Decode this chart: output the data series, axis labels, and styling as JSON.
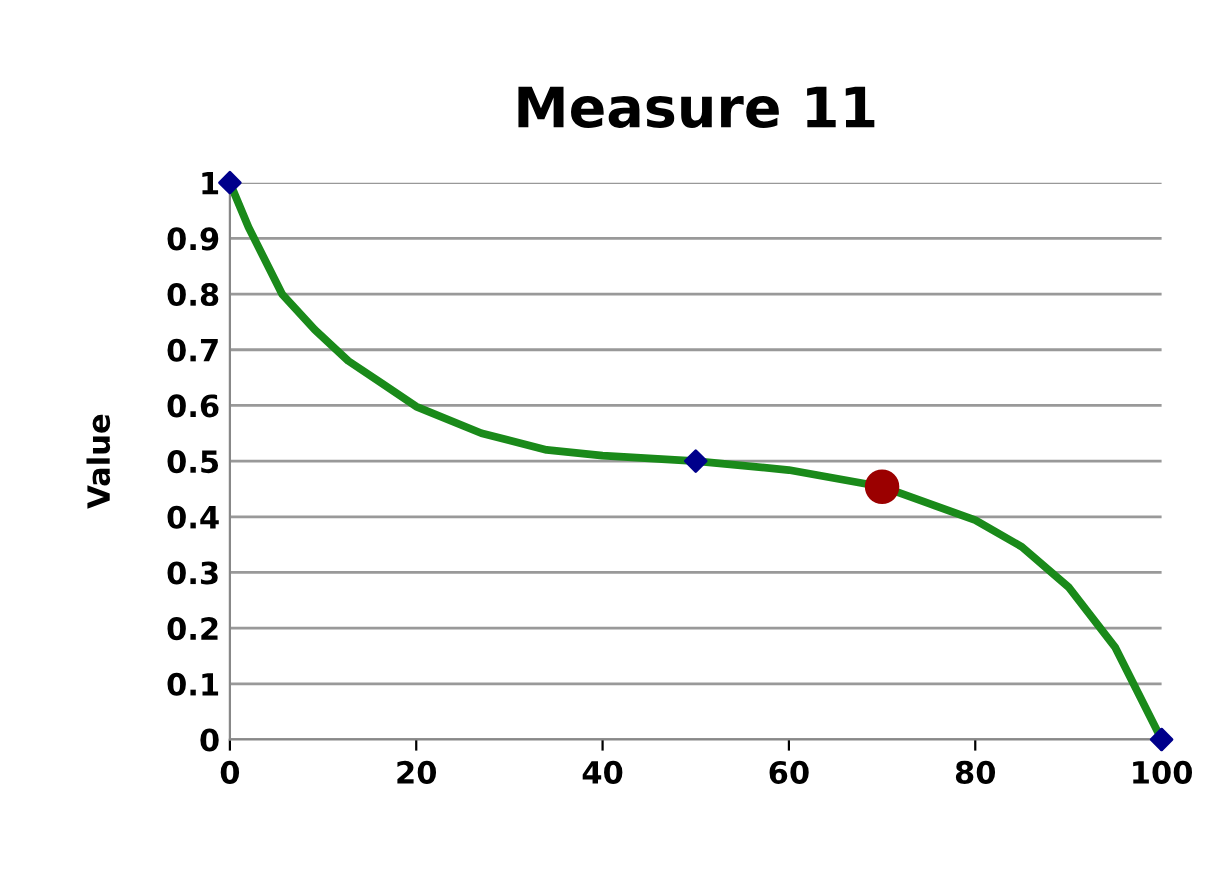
{
  "chart_data": {
    "type": "line",
    "title": "Measure 11",
    "ylabel": "Value",
    "xlim": [
      0,
      100
    ],
    "xticks": [
      0,
      20,
      40,
      60,
      80,
      100
    ],
    "ylim": [
      0,
      1
    ],
    "yticks": [
      0,
      0.1,
      0.2,
      0.3,
      0.4,
      0.5,
      0.6,
      0.7,
      0.8,
      0.9,
      1
    ],
    "grid": "y",
    "series": [
      {
        "color": "#1a8a1a",
        "marker": "none",
        "x": [
          0,
          2,
          5.6,
          9.1,
          12.7,
          16.3,
          20,
          27,
          34,
          40,
          50,
          60,
          70,
          75,
          80,
          85,
          90,
          95,
          100
        ],
        "values": [
          1,
          0.92,
          0.8,
          0.736,
          0.68,
          0.64,
          0.598,
          0.55,
          0.52,
          0.51,
          0.5,
          0.484,
          0.454,
          0.424,
          0.394,
          0.346,
          0.274,
          0.166,
          0
        ]
      },
      {
        "type": "scatter",
        "color": "#00008b",
        "marker": "diamond",
        "x": [
          0,
          50,
          100
        ],
        "values": [
          1,
          0.5,
          0
        ]
      },
      {
        "type": "scatter",
        "color": "#9b0000",
        "marker": "circle",
        "x": [
          70
        ],
        "values": [
          0.454
        ]
      }
    ]
  }
}
